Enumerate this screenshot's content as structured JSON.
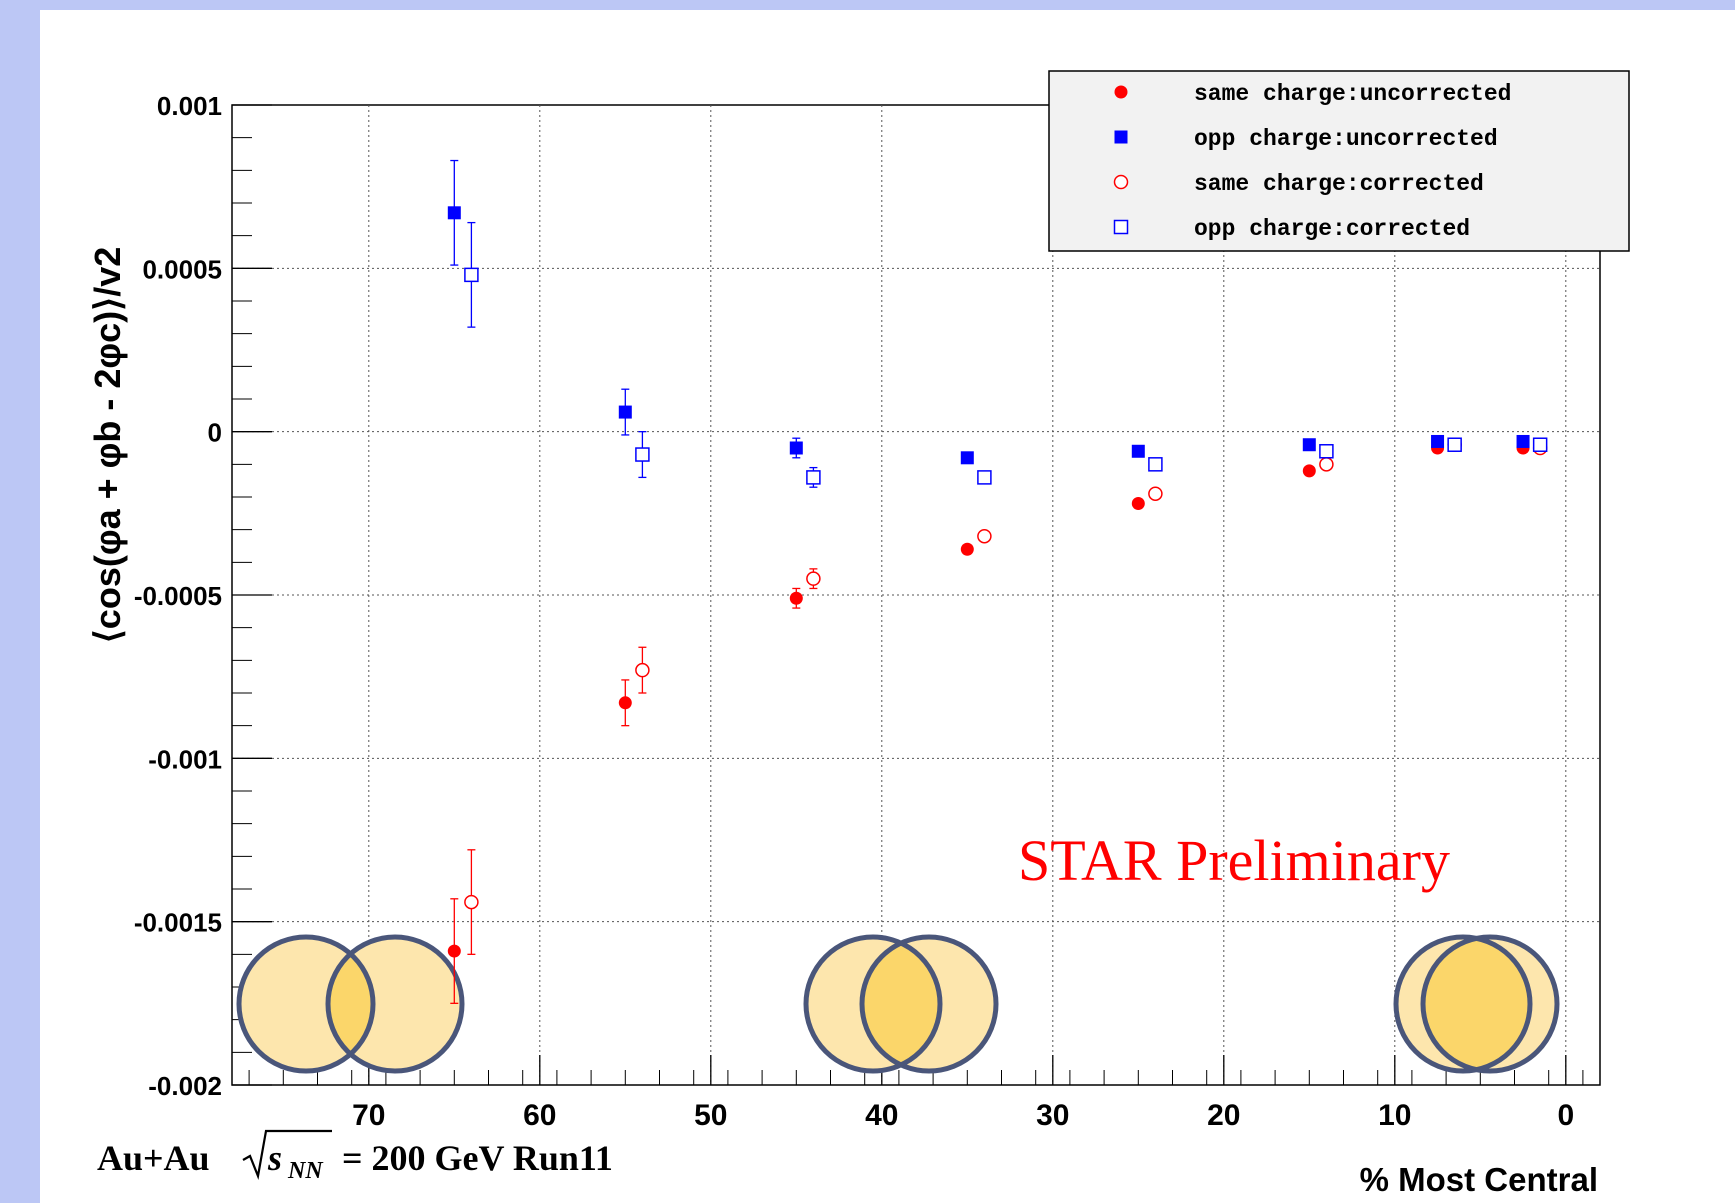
{
  "chart_data": {
    "type": "scatter",
    "ylabel": "⟨cos(φa + φb - 2φc)⟩/v2",
    "xlabel": "% Most Central",
    "xlim": [
      78,
      -2
    ],
    "ylim": [
      -0.002,
      0.001
    ],
    "x_ticks": [
      "70",
      "60",
      "50",
      "40",
      "30",
      "20",
      "10",
      "0"
    ],
    "y_ticks": [
      "0.001",
      "0.0005",
      "0",
      "-0.0005",
      "-0.001",
      "-0.0015",
      "-0.002"
    ],
    "grid": true,
    "legend_position": "top-right",
    "series": [
      {
        "name": "same charge:uncorrected",
        "color": "#ff0000",
        "marker": "filled-circle",
        "x": [
          65,
          55,
          45,
          35,
          25,
          15,
          7.5,
          2.5
        ],
        "y": [
          -0.00159,
          -0.00083,
          -0.00051,
          -0.00036,
          -0.00022,
          -0.00012,
          -5e-05,
          -5e-05
        ],
        "err": [
          0.00016,
          7e-05,
          3e-05,
          1e-05,
          1e-05,
          1e-05,
          1e-05,
          1e-05
        ]
      },
      {
        "name": "opp  charge:uncorrected",
        "color": "#0000ff",
        "marker": "filled-square",
        "x": [
          65,
          55,
          45,
          35,
          25,
          15,
          7.5,
          2.5
        ],
        "y": [
          0.00067,
          6e-05,
          -5e-05,
          -8e-05,
          -6e-05,
          -4e-05,
          -3e-05,
          -3e-05
        ],
        "err": [
          0.00016,
          7e-05,
          3e-05,
          1e-05,
          1e-05,
          1e-05,
          1e-05,
          1e-05
        ]
      },
      {
        "name": "same charge:corrected",
        "color": "#ff0000",
        "marker": "open-circle",
        "x": [
          64,
          54,
          44,
          34,
          24,
          14,
          6.5,
          1.5
        ],
        "y": [
          -0.00144,
          -0.00073,
          -0.00045,
          -0.00032,
          -0.00019,
          -0.0001,
          -4e-05,
          -5e-05
        ],
        "err": [
          0.00016,
          7e-05,
          3e-05,
          1e-05,
          1e-05,
          1e-05,
          1e-05,
          1e-05
        ]
      },
      {
        "name": "opp  charge:corrected",
        "color": "#0000ff",
        "marker": "open-square",
        "x": [
          64,
          54,
          44,
          34,
          24,
          14,
          6.5,
          1.5
        ],
        "y": [
          0.00048,
          -7e-05,
          -0.00014,
          -0.00014,
          -0.0001,
          -6e-05,
          -4e-05,
          -4e-05
        ],
        "err": [
          0.00016,
          7e-05,
          3e-05,
          1e-05,
          1e-05,
          1e-05,
          1e-05,
          1e-05
        ]
      }
    ],
    "annotations": {
      "preliminary": "STAR Preliminary",
      "collision": "Au+Au",
      "energy": "= 200 GeV Run11"
    }
  },
  "colors": {
    "accent_red": "#ff0000",
    "accent_blue": "#0000ff",
    "overlap_fill": "#fde6ad",
    "overlap_core": "#fbd66a",
    "overlap_stroke": "#4a567a"
  }
}
